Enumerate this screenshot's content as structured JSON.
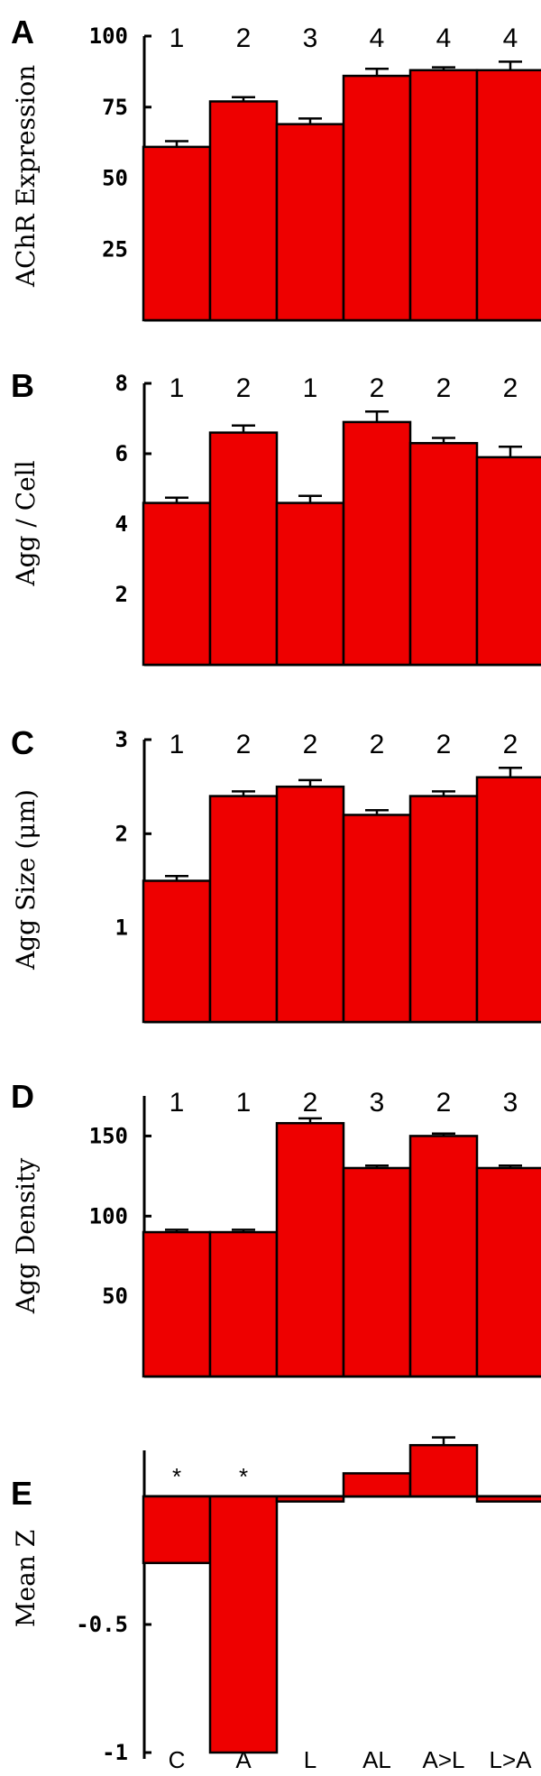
{
  "chart_data": [
    {
      "type": "bar",
      "panel": "A",
      "ylabel": "AChR Expression",
      "yticks": [
        "100",
        "75",
        "50",
        "25"
      ],
      "ylim": [
        0,
        100
      ],
      "values": [
        61,
        77,
        69,
        86,
        88,
        88
      ],
      "errors": [
        2,
        1.5,
        2,
        2.5,
        1,
        3
      ],
      "groups": [
        "1",
        "2",
        "3",
        "4",
        "4",
        "4"
      ]
    },
    {
      "type": "bar",
      "panel": "B",
      "ylabel": "Agg / Cell",
      "yticks": [
        "8",
        "6",
        "4",
        "2"
      ],
      "ylim": [
        0,
        8
      ],
      "values": [
        4.6,
        6.6,
        4.6,
        6.9,
        6.3,
        5.9
      ],
      "errors": [
        0.15,
        0.2,
        0.2,
        0.3,
        0.15,
        0.3
      ],
      "groups": [
        "1",
        "2",
        "1",
        "2",
        "2",
        "2"
      ]
    },
    {
      "type": "bar",
      "panel": "C",
      "ylabel": "Agg Size (μm)",
      "yticks": [
        "3",
        "2",
        "1"
      ],
      "ylim": [
        0,
        3
      ],
      "values": [
        1.5,
        2.4,
        2.5,
        2.2,
        2.4,
        2.6
      ],
      "errors": [
        0.05,
        0.05,
        0.07,
        0.05,
        0.05,
        0.1
      ],
      "groups": [
        "1",
        "2",
        "2",
        "2",
        "2",
        "2"
      ]
    },
    {
      "type": "bar",
      "panel": "D",
      "ylabel": "Agg Density",
      "yticks": [
        "150",
        "100",
        "50"
      ],
      "ylim": [
        0,
        175
      ],
      "values": [
        90,
        90,
        158,
        130,
        150,
        130
      ],
      "errors": [
        1.5,
        1.5,
        3,
        1.5,
        1.5,
        1.5
      ],
      "groups": [
        "1",
        "1",
        "2",
        "3",
        "2",
        "3"
      ]
    },
    {
      "type": "bar",
      "panel": "E",
      "ylabel": "Mean Z",
      "yticks": [
        "-0.5",
        "-1"
      ],
      "ylim": [
        -1.0,
        0.2
      ],
      "values": [
        -0.26,
        -1.0,
        -0.02,
        0.09,
        0.2,
        -0.02
      ],
      "errors": [
        0,
        0,
        0,
        0,
        0.03,
        0
      ],
      "markers": [
        "*",
        "*",
        "",
        "",
        "",
        ""
      ],
      "categories": [
        "C",
        "A",
        "L",
        "AL",
        "A>L",
        "L>A"
      ]
    }
  ]
}
